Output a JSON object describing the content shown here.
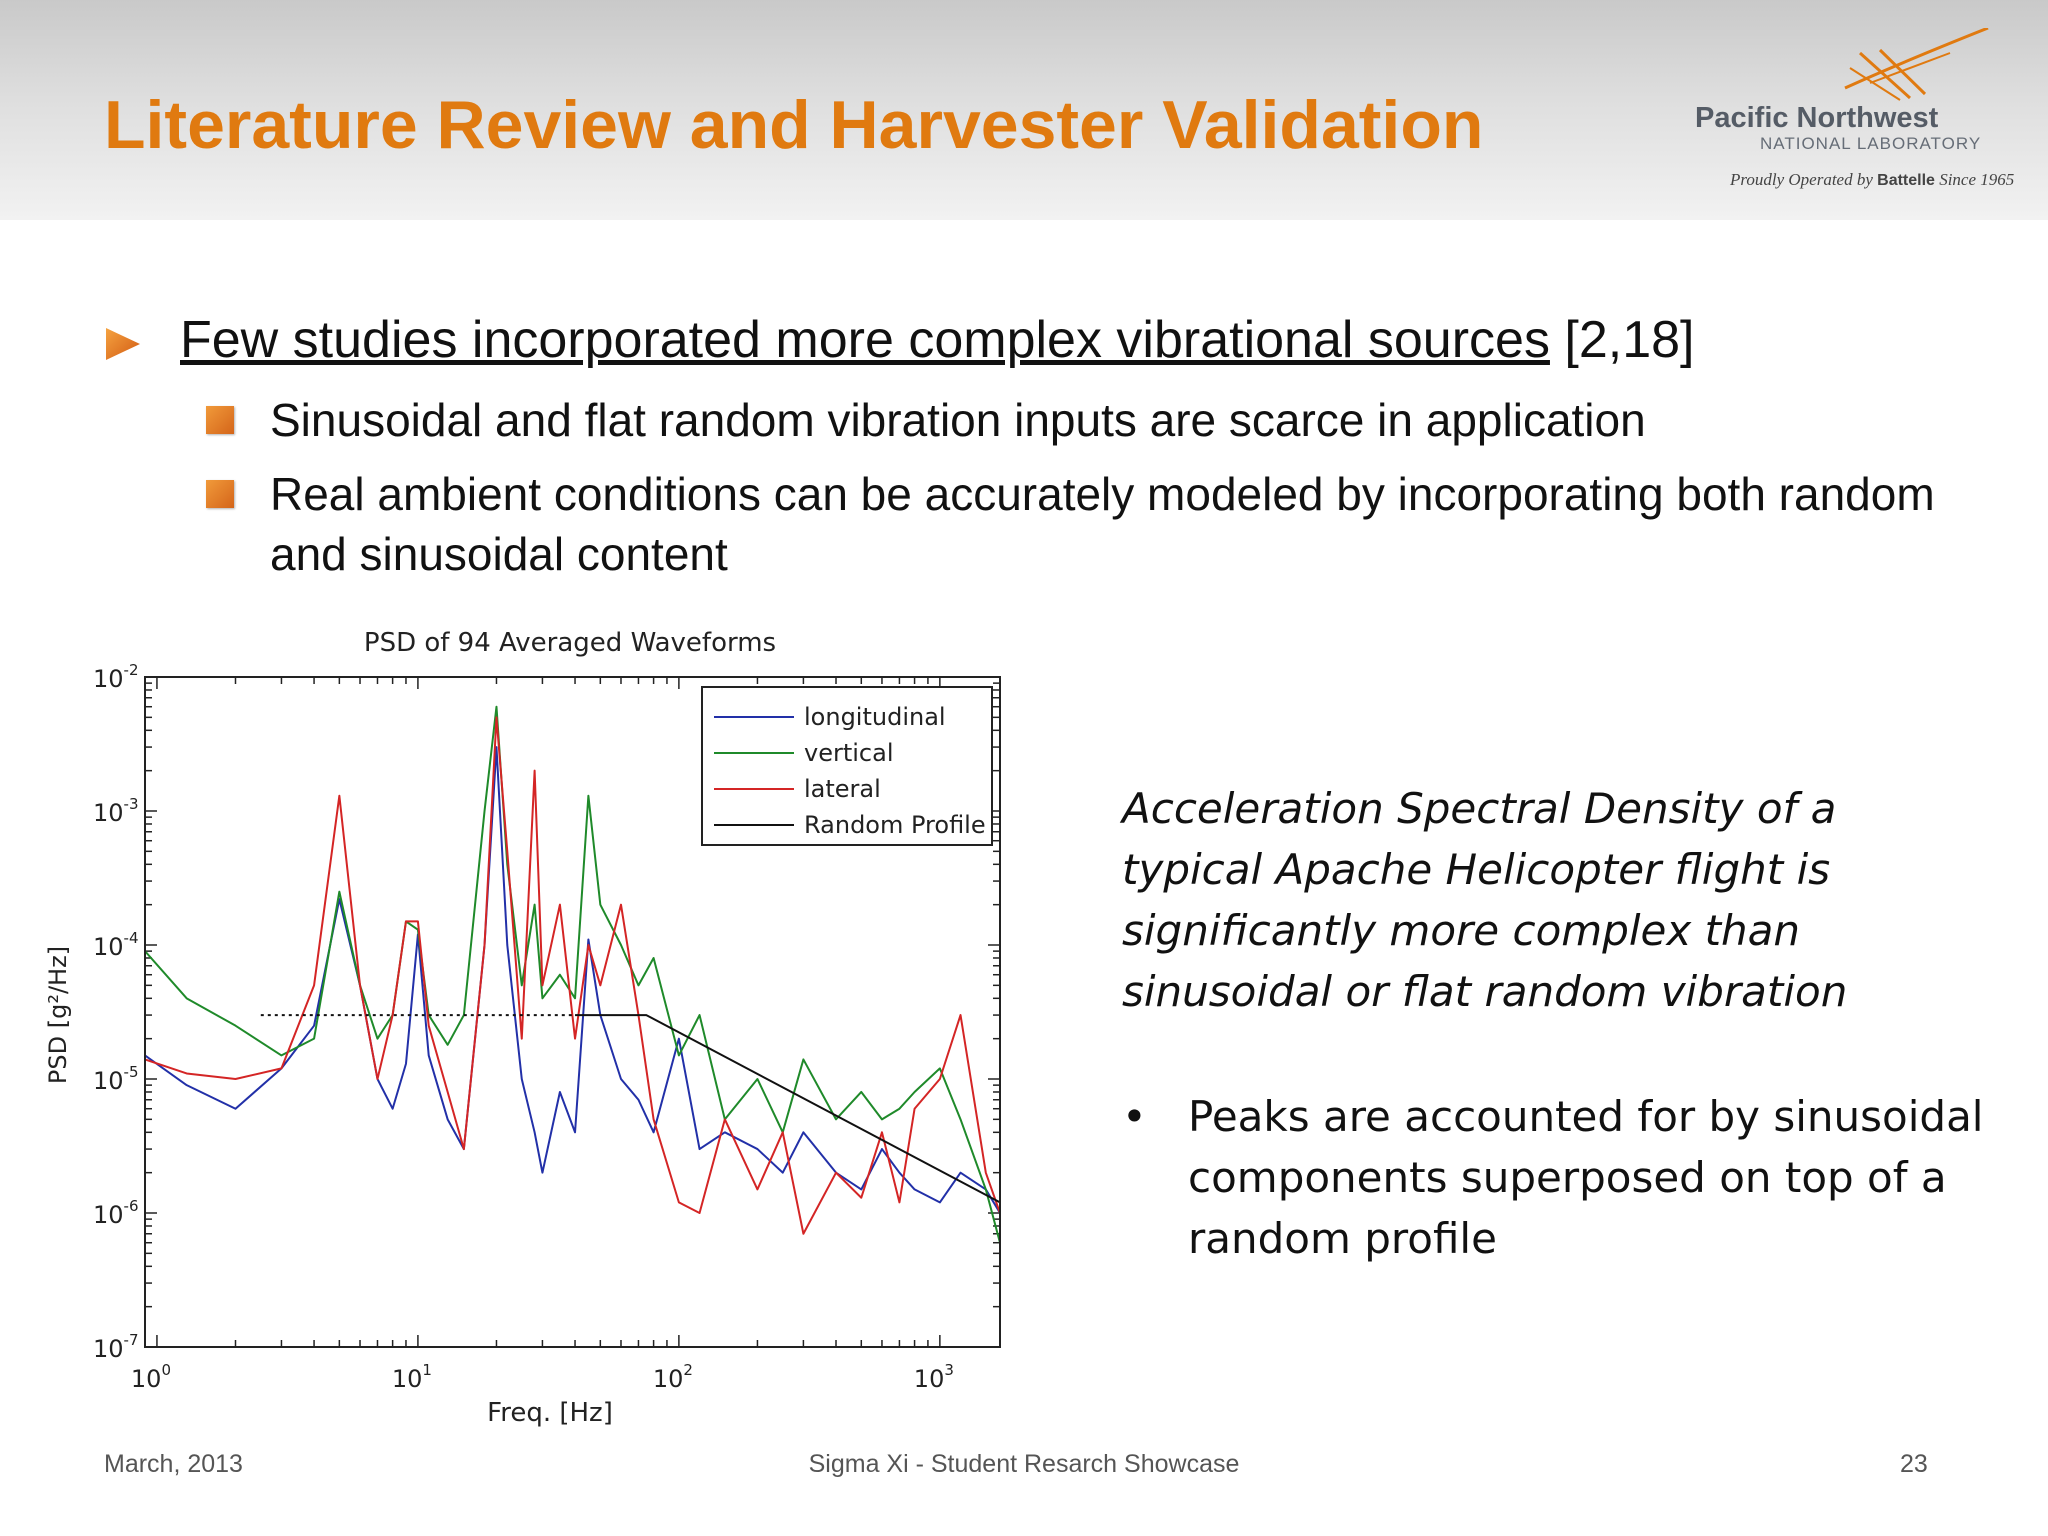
{
  "slide": {
    "title": "Literature Review and Harvester Validation",
    "logo": {
      "line1": "Pacific Northwest",
      "line2": "NATIONAL LABORATORY",
      "line3_pre": "Proudly Operated by ",
      "line3_brand": "Battelle",
      "line3_post": " Since 1965"
    },
    "bullet1": {
      "underlined": "Few studies incorporated more complex vibrational sources",
      "rest": " [2,18]"
    },
    "sub_bullets": [
      "Sinusoidal and flat random vibration inputs are scarce in application",
      "Real ambient conditions can be accurately modeled by incorporating both random and sinusoidal content"
    ],
    "caption": "Acceleration Spectral Density of a typical Apache Helicopter flight is significantly more complex than sinusoidal or flat random vibration",
    "caption_bullet": "•",
    "sub_caption": "Peaks are accounted for by sinusoidal components superposed on top of a random profile",
    "footer": {
      "left": "March, 2013",
      "center": "Sigma Xi - Student Resarch Showcase",
      "right": "23"
    },
    "colors": {
      "title": "#e07a10",
      "accent": "#e06a10"
    },
    "icons": {
      "bullet1": "arrow-right-icon",
      "sub_bullets": "square-bullet-icon",
      "logo": "pnnl-logo-icon"
    }
  },
  "chart_data": {
    "type": "line",
    "title": "PSD of 94 Averaged Waveforms",
    "xlabel": "Freq. [Hz]",
    "ylabel": "PSD [g²/Hz]",
    "xscale": "log",
    "yscale": "log",
    "xlim": [
      0.9,
      1700
    ],
    "ylim": [
      1e-07,
      0.01
    ],
    "x_ticks": [
      {
        "base": "10",
        "exp": "0",
        "value": 1
      },
      {
        "base": "10",
        "exp": "1",
        "value": 10
      },
      {
        "base": "10",
        "exp": "2",
        "value": 100
      },
      {
        "base": "10",
        "exp": "3",
        "value": 1000
      }
    ],
    "y_ticks": [
      {
        "base": "10",
        "exp": "-2",
        "value": 0.01
      },
      {
        "base": "10",
        "exp": "-3",
        "value": 0.001
      },
      {
        "base": "10",
        "exp": "-4",
        "value": 0.0001
      },
      {
        "base": "10",
        "exp": "-5",
        "value": 1e-05
      },
      {
        "base": "10",
        "exp": "-6",
        "value": 1e-06
      },
      {
        "base": "10",
        "exp": "-7",
        "value": 1e-07
      }
    ],
    "legend_position": "top-right",
    "grid": false,
    "series": [
      {
        "name": "longitudinal",
        "color": "#2230a8",
        "x": [
          0.9,
          1.3,
          2,
          3,
          4,
          5,
          6,
          7,
          8,
          9,
          10,
          11,
          13,
          15,
          18,
          20,
          22,
          25,
          28,
          30,
          35,
          40,
          45,
          50,
          60,
          70,
          80,
          100,
          120,
          150,
          200,
          250,
          300,
          400,
          500,
          600,
          700,
          800,
          1000,
          1200,
          1500,
          1700
        ],
        "y": [
          1.5e-05,
          9e-06,
          6e-06,
          1.2e-05,
          2.5e-05,
          0.00022,
          5e-05,
          1e-05,
          6e-06,
          1.3e-05,
          0.00012,
          1.5e-05,
          5e-06,
          3e-06,
          0.0001,
          0.003,
          0.0001,
          1e-05,
          4e-06,
          2e-06,
          8e-06,
          4e-06,
          0.00011,
          3e-05,
          1e-05,
          7e-06,
          4e-06,
          2e-05,
          3e-06,
          4e-06,
          3e-06,
          2e-06,
          4e-06,
          2e-06,
          1.5e-06,
          3e-06,
          2e-06,
          1.5e-06,
          1.2e-06,
          2e-06,
          1.5e-06,
          1e-06
        ]
      },
      {
        "name": "vertical",
        "color": "#1f8a2a",
        "x": [
          0.9,
          1.3,
          2,
          3,
          4,
          5,
          6,
          7,
          8,
          9,
          10,
          11,
          13,
          15,
          18,
          20,
          22,
          25,
          28,
          30,
          35,
          40,
          45,
          50,
          60,
          70,
          80,
          100,
          120,
          150,
          200,
          250,
          300,
          400,
          500,
          600,
          700,
          800,
          1000,
          1200,
          1500,
          1700
        ],
        "y": [
          9e-05,
          4e-05,
          2.5e-05,
          1.5e-05,
          2e-05,
          0.00025,
          5e-05,
          2e-05,
          3e-05,
          0.00015,
          0.00013,
          3e-05,
          1.8e-05,
          3e-05,
          0.001,
          0.006,
          0.0004,
          5e-05,
          0.0002,
          4e-05,
          6e-05,
          4e-05,
          0.0013,
          0.0002,
          0.0001,
          5e-05,
          8e-05,
          1.5e-05,
          3e-05,
          5e-06,
          1e-05,
          4e-06,
          1.4e-05,
          5e-06,
          8e-06,
          5e-06,
          6e-06,
          8e-06,
          1.2e-05,
          5e-06,
          1.5e-06,
          6e-07
        ]
      },
      {
        "name": "lateral",
        "color": "#d42525",
        "x": [
          0.9,
          1.3,
          2,
          3,
          4,
          5,
          6,
          7,
          8,
          9,
          10,
          11,
          13,
          15,
          18,
          20,
          22,
          25,
          28,
          30,
          35,
          40,
          45,
          50,
          60,
          70,
          80,
          100,
          120,
          150,
          200,
          250,
          300,
          400,
          500,
          600,
          700,
          800,
          1000,
          1200,
          1500,
          1700
        ],
        "y": [
          1.4e-05,
          1.1e-05,
          1e-05,
          1.2e-05,
          5e-05,
          0.0013,
          5e-05,
          1e-05,
          3e-05,
          0.00015,
          0.00015,
          2.5e-05,
          8e-06,
          3e-06,
          0.0001,
          0.005,
          0.0005,
          2e-05,
          0.002,
          5e-05,
          0.0002,
          2e-05,
          0.0001,
          5e-05,
          0.0002,
          3e-05,
          5e-06,
          1.2e-06,
          1e-06,
          5e-06,
          1.5e-06,
          4e-06,
          7e-07,
          2e-06,
          1.3e-06,
          4e-06,
          1.2e-06,
          6e-06,
          1e-05,
          3e-05,
          2e-06,
          1e-06
        ]
      },
      {
        "name": "Random Profile",
        "color": "#111111",
        "dashed_until": 40,
        "x": [
          2.5,
          40,
          75,
          1700
        ],
        "y": [
          3e-05,
          3e-05,
          3e-05,
          1.2e-06
        ]
      }
    ]
  }
}
